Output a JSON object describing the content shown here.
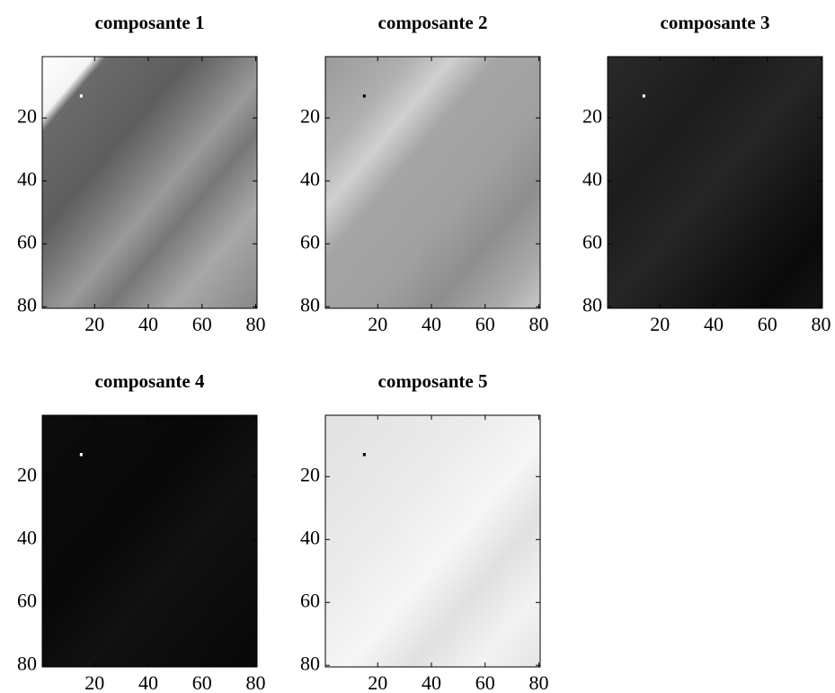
{
  "chart_data": [
    {
      "type": "image",
      "title": "composante 1",
      "xlim": [
        0.5,
        80.5
      ],
      "ylim": [
        0.5,
        80.5
      ],
      "xticks": [
        20,
        40,
        60,
        80
      ],
      "yticks": [
        20,
        40,
        60,
        80
      ],
      "marker_x": 15,
      "marker_y": 13,
      "marker_color": "#ffffff"
    },
    {
      "type": "image",
      "title": "composante 2",
      "xlim": [
        0.5,
        80.5
      ],
      "ylim": [
        0.5,
        80.5
      ],
      "xticks": [
        20,
        40,
        60,
        80
      ],
      "yticks": [
        20,
        40,
        60,
        80
      ],
      "marker_x": 15,
      "marker_y": 13,
      "marker_color": "#000000"
    },
    {
      "type": "image",
      "title": "composante 3",
      "xlim": [
        0.5,
        80.5
      ],
      "ylim": [
        0.5,
        80.5
      ],
      "xticks": [
        20,
        40,
        60,
        80
      ],
      "yticks": [
        20,
        40,
        60,
        80
      ],
      "marker_x": 14,
      "marker_y": 13,
      "marker_color": "#ffffff"
    },
    {
      "type": "image",
      "title": "composante 4",
      "xlim": [
        0.5,
        80.5
      ],
      "ylim": [
        0.5,
        80.5
      ],
      "xticks": [
        20,
        40,
        60,
        80
      ],
      "yticks": [
        20,
        40,
        60,
        80
      ],
      "marker_x": 15,
      "marker_y": 13,
      "marker_color": "#ffffff"
    },
    {
      "type": "image",
      "title": "composante 5",
      "xlim": [
        0.5,
        80.5
      ],
      "ylim": [
        0.5,
        80.5
      ],
      "xticks": [
        20,
        40,
        60,
        80
      ],
      "yticks": [
        20,
        40,
        60,
        80
      ],
      "marker_x": 15,
      "marker_y": 13,
      "marker_color": "#000000"
    }
  ]
}
